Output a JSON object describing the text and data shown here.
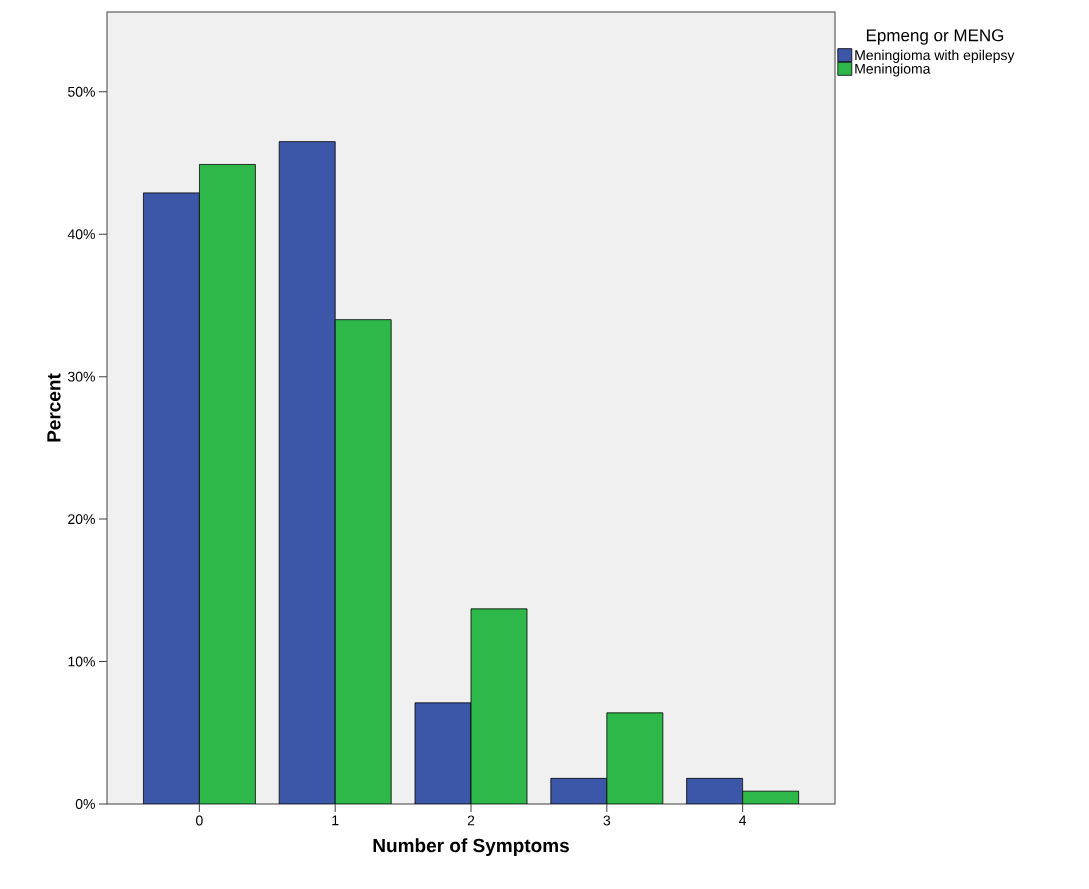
{
  "chart_data": {
    "type": "bar",
    "xlabel": "Number of Symptoms",
    "ylabel": "Percent",
    "legend_title": "Epmeng or MENG",
    "categories": [
      "0",
      "1",
      "2",
      "3",
      "4"
    ],
    "series": [
      {
        "name": "Meningioma with epilepsy",
        "color": "#3c56a8",
        "values": [
          42.9,
          46.5,
          7.1,
          1.8,
          1.8
        ]
      },
      {
        "name": "Meningioma",
        "color": "#2eb84a",
        "values": [
          44.9,
          34.0,
          13.7,
          6.4,
          0.9
        ]
      }
    ],
    "ylim": [
      0,
      55.6
    ],
    "yticks": [
      {
        "value": 0,
        "label": "0%"
      },
      {
        "value": 10,
        "label": "10%"
      },
      {
        "value": 20,
        "label": "20%"
      },
      {
        "value": 30,
        "label": "30%"
      },
      {
        "value": 40,
        "label": "40%"
      },
      {
        "value": 50,
        "label": "50%"
      }
    ],
    "legend": "top right",
    "grid": false
  }
}
